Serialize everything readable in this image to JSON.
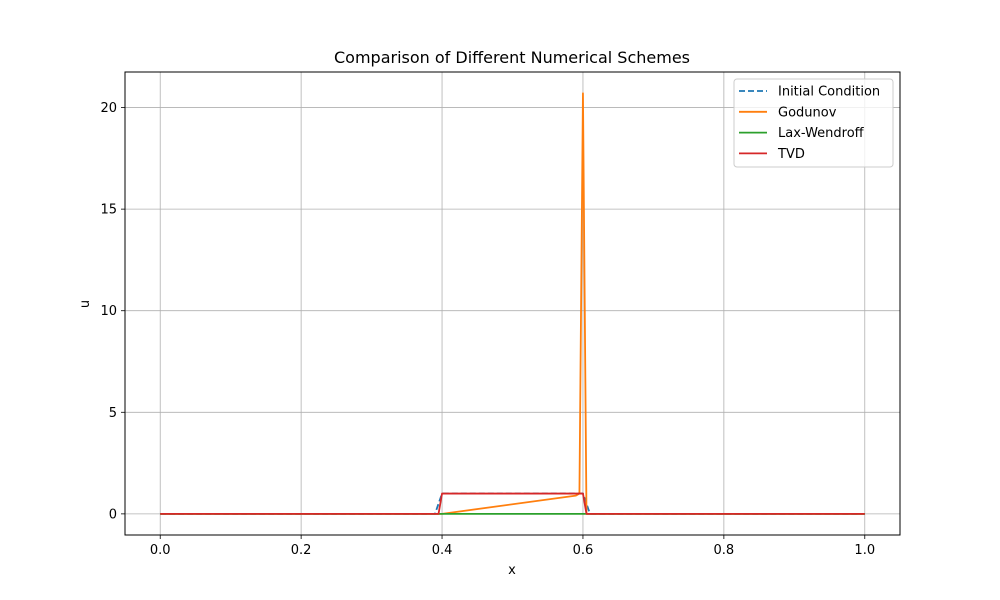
{
  "chart_data": {
    "type": "line",
    "title": "Comparison of Different Numerical Schemes",
    "xlabel": "x",
    "ylabel": "u",
    "xlim": [
      -0.05,
      1.05
    ],
    "ylim": [
      -1.04,
      21.75
    ],
    "xticks": [
      0.0,
      0.2,
      0.4,
      0.6,
      0.8,
      1.0
    ],
    "xtick_labels": [
      "0.0",
      "0.2",
      "0.4",
      "0.6",
      "0.8",
      "1.0"
    ],
    "yticks": [
      0,
      5,
      10,
      15,
      20
    ],
    "ytick_labels": [
      "0",
      "5",
      "10",
      "15",
      "20"
    ],
    "grid": true,
    "legend_position": "top-right",
    "series": [
      {
        "name": "Initial Condition",
        "color": "#1f77b4",
        "style": "dashed",
        "x": [
          0.0,
          0.39,
          0.4,
          0.6,
          0.61,
          1.0
        ],
        "y": [
          0,
          0,
          1,
          1,
          0,
          0
        ]
      },
      {
        "name": "Godunov",
        "color": "#ff7f0e",
        "style": "solid",
        "x": [
          0.0,
          0.39,
          0.4,
          0.59,
          0.595,
          0.6,
          0.605,
          1.0
        ],
        "y": [
          0,
          0,
          0,
          0.9,
          1.0,
          20.7,
          0,
          0
        ]
      },
      {
        "name": "Lax-Wendroff",
        "color": "#2ca02c",
        "style": "solid",
        "x": [
          0.0,
          1.0
        ],
        "y": [
          0,
          0
        ]
      },
      {
        "name": "TVD",
        "color": "#d62728",
        "style": "solid",
        "x": [
          0.0,
          0.395,
          0.4,
          0.6,
          0.605,
          1.0
        ],
        "y": [
          0,
          0,
          1,
          1,
          0,
          0
        ]
      }
    ]
  }
}
